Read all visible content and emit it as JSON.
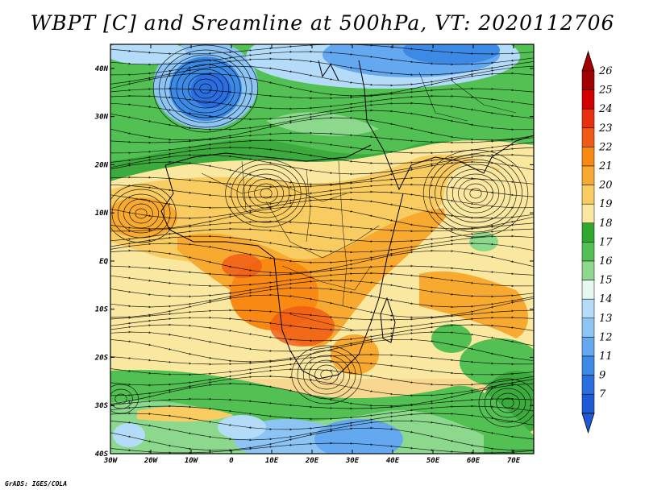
{
  "title": "WBPT [C] and Sreamline at 500hPa, VT: 2020112706",
  "map": {
    "lon_range": [
      -30,
      75
    ],
    "lat_range": [
      -40,
      45
    ],
    "lat_labels": [
      "40N",
      "30N",
      "20N",
      "10N",
      "EQ",
      "10S",
      "20S",
      "30S",
      "40S"
    ],
    "lat_values": [
      40,
      30,
      20,
      10,
      0,
      -10,
      -20,
      -30,
      -40
    ],
    "lon_labels": [
      "30W",
      "20W",
      "10W",
      "0",
      "10E",
      "20E",
      "30E",
      "40E",
      "50E",
      "60E",
      "70E"
    ],
    "lon_values": [
      -30,
      -20,
      -10,
      0,
      10,
      20,
      30,
      40,
      50,
      60,
      70
    ]
  },
  "colorbar": {
    "labels": [
      "26",
      "25",
      "24",
      "23",
      "22",
      "21",
      "20",
      "19",
      "18",
      "17",
      "16",
      "15",
      "14",
      "13",
      "12",
      "11",
      "9",
      "7"
    ],
    "colors": [
      "#a50000",
      "#d20000",
      "#e83010",
      "#f05a14",
      "#f88a14",
      "#f8aa30",
      "#f8cc60",
      "#fae8a0",
      "#2ea82e",
      "#52c052",
      "#8cd88c",
      "#e6f8f0",
      "#b4dcf8",
      "#8cc4f4",
      "#64a8f0",
      "#3c8ae6",
      "#2a6ee0",
      "#1e5ad6"
    ],
    "top_color": "#a50000",
    "bottom_color": "#1e5ad6"
  },
  "credit": "GrADS: IGES/COLA"
}
